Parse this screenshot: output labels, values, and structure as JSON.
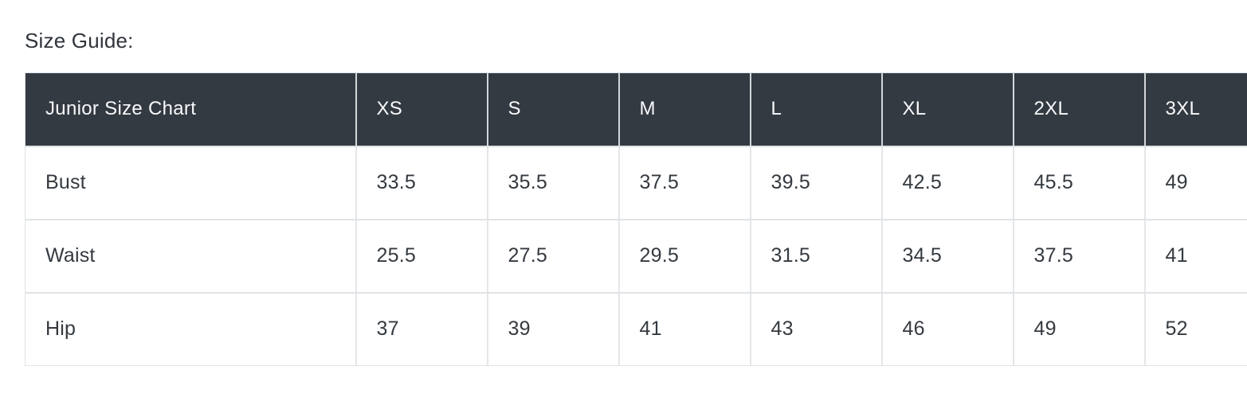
{
  "page": {
    "section_title": "Size Guide:"
  },
  "table": {
    "name": "Junior Size Chart",
    "header": [
      "Junior Size Chart",
      "XS",
      "S",
      "M",
      "L",
      "XL",
      "2XL",
      "3XL"
    ],
    "rows": [
      {
        "label": "Bust",
        "values": [
          "33.5",
          "35.5",
          "37.5",
          "39.5",
          "42.5",
          "45.5",
          "49"
        ]
      },
      {
        "label": "Waist",
        "values": [
          "25.5",
          "27.5",
          "29.5",
          "31.5",
          "34.5",
          "37.5",
          "41"
        ]
      },
      {
        "label": "Hip",
        "values": [
          "37",
          "39",
          "41",
          "43",
          "46",
          "49",
          "52"
        ]
      }
    ],
    "colors": {
      "header_bg": "#343a42",
      "header_text": "#f8f9fa",
      "body_text": "#343a40",
      "border": "#e0e3e6"
    }
  },
  "chart_data": {
    "type": "table",
    "title": "Junior Size Chart",
    "columns": [
      "XS",
      "S",
      "M",
      "L",
      "XL",
      "2XL",
      "3XL"
    ],
    "series": [
      {
        "name": "Bust",
        "values": [
          33.5,
          35.5,
          37.5,
          39.5,
          42.5,
          45.5,
          49
        ]
      },
      {
        "name": "Waist",
        "values": [
          25.5,
          27.5,
          29.5,
          31.5,
          34.5,
          37.5,
          41
        ]
      },
      {
        "name": "Hip",
        "values": [
          37,
          39,
          41,
          43,
          46,
          49,
          52
        ]
      }
    ]
  }
}
